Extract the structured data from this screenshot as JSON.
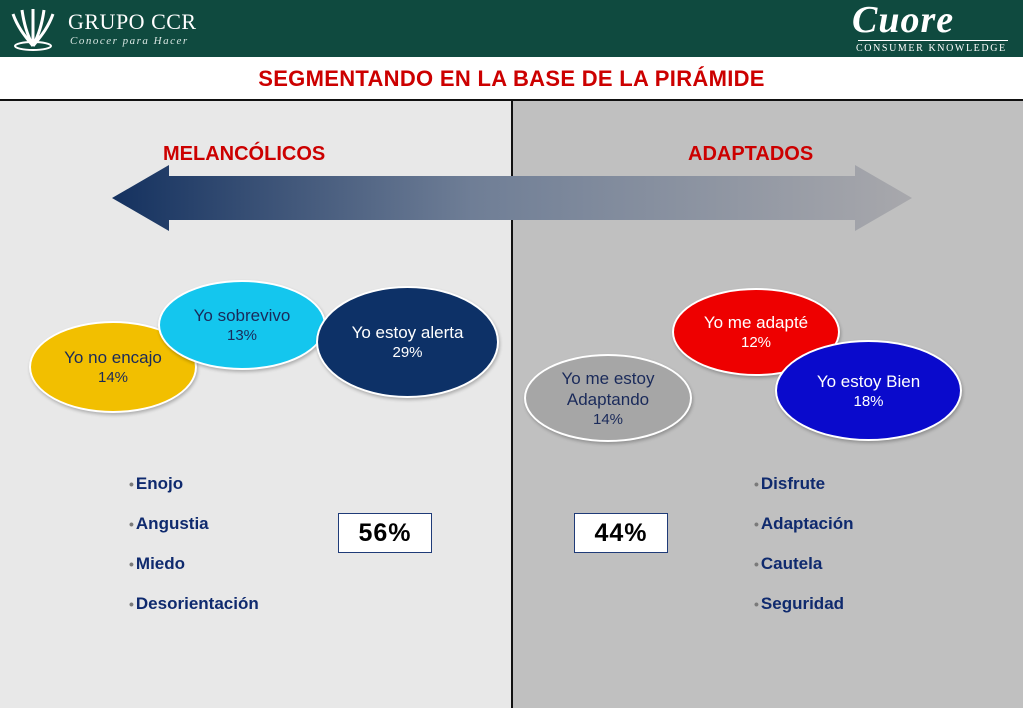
{
  "header": {
    "left_logo_name": "GRUPO CCR",
    "left_logo_tagline": "Conocer para Hacer",
    "right_logo_name": "Cuore",
    "right_logo_tagline": "CONSUMER KNOWLEDGE"
  },
  "title": "SEGMENTANDO EN LA BASE DE LA PIRÁMIDE",
  "colors": {
    "header_bg": "#0f4a3f",
    "title_red": "#cc0000",
    "left_panel": "#e8e8e8",
    "right_panel": "#c0c0c0",
    "arrow_dark": "#14315f",
    "arrow_light": "#a8a8ac",
    "list_text": "#0f2a6e"
  },
  "left": {
    "label": "MELANCÓLICOS",
    "bubbles": [
      {
        "label": "Yo no encajo",
        "percent": "14%",
        "color": "#f2bf00",
        "text_color": "#1a2a5a"
      },
      {
        "label": "Yo sobrevivo",
        "percent": "13%",
        "color": "#14c6ee",
        "text_color": "#1a2a5a"
      },
      {
        "label": "Yo estoy alerta",
        "percent": "29%",
        "color": "#0d3167",
        "text_color": "#ffffff"
      }
    ],
    "items": [
      "Enojo",
      "Angustia",
      "Miedo",
      "Desorientación"
    ],
    "total": "56%"
  },
  "right": {
    "label": "ADAPTADOS",
    "bubbles": [
      {
        "label": "Yo me estoy Adaptando",
        "percent": "14%",
        "color": "#a6a6a6",
        "text_color": "#1a2a5a"
      },
      {
        "label": "Yo me adapté",
        "percent": "12%",
        "color": "#ee0000",
        "text_color": "#ffffff"
      },
      {
        "label": "Yo estoy Bien",
        "percent": "18%",
        "color": "#0a0acc",
        "text_color": "#ffffff"
      }
    ],
    "items": [
      "Disfrute",
      "Adaptación",
      "Cautela",
      "Seguridad"
    ],
    "total": "44%"
  }
}
